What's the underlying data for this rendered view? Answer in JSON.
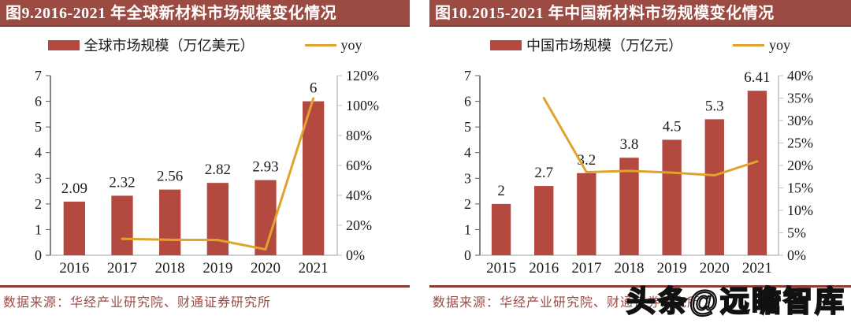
{
  "watermark": "头条@远瞻智库",
  "colors": {
    "bar": "#B4493F",
    "line": "#DFA32E",
    "title_bg": "#9C4B43",
    "title_text": "#FFFFFF",
    "separator": "#8E3B33",
    "source_text": "#9C4B43",
    "axis_dark": "#595959",
    "axis_light": "#BFBFBF",
    "tick_text": "#1A1A1A"
  },
  "chart_data": [
    {
      "type": "bar",
      "panel_title": "图9.2016-2021 年全球新材料市场规模变化情况",
      "legend_bar": "全球市场规模（万亿美元）",
      "legend_line": "yoy",
      "legend_position": "top",
      "grid": false,
      "categories": [
        "2016",
        "2017",
        "2018",
        "2019",
        "2020",
        "2021"
      ],
      "series": [
        {
          "name": "全球市场规模（万亿美元）",
          "type": "bar",
          "axis": "left",
          "values": [
            2.09,
            2.32,
            2.56,
            2.82,
            2.93,
            6
          ],
          "labels": [
            "2.09",
            "2.32",
            "2.56",
            "2.82",
            "2.93",
            "6"
          ]
        },
        {
          "name": "yoy",
          "type": "line",
          "axis": "right",
          "values": [
            null,
            11,
            10.3,
            10.2,
            3.9,
            104.8
          ]
        }
      ],
      "y_left": {
        "min": 0,
        "max": 7,
        "step": 1,
        "suffix": ""
      },
      "y_right": {
        "min": 0,
        "max": 120,
        "step": 20,
        "suffix": "%"
      },
      "source": "数据来源：华经产业研究院、财通证券研究所"
    },
    {
      "type": "bar",
      "panel_title": "图10.2015-2021 年中国新材料市场规模变化情况",
      "legend_bar": "中国市场规模（万亿元）",
      "legend_line": "yoy",
      "legend_position": "top",
      "grid": false,
      "categories": [
        "2015",
        "2016",
        "2017",
        "2018",
        "2019",
        "2020",
        "2021"
      ],
      "series": [
        {
          "name": "中国市场规模（万亿元）",
          "type": "bar",
          "axis": "left",
          "values": [
            2,
            2.7,
            3.2,
            3.8,
            4.5,
            5.3,
            6.41
          ],
          "labels": [
            "2",
            "2.7",
            "3.2",
            "3.8",
            "4.5",
            "5.3",
            "6.41"
          ]
        },
        {
          "name": "yoy",
          "type": "line",
          "axis": "right",
          "values": [
            null,
            35,
            18.5,
            18.8,
            18.4,
            17.8,
            20.9
          ]
        }
      ],
      "y_left": {
        "min": 0,
        "max": 7,
        "step": 1,
        "suffix": ""
      },
      "y_right": {
        "min": 0,
        "max": 40,
        "step": 5,
        "suffix": "%"
      },
      "source": "数据来源：华经产业研究院、财通证券研究所"
    }
  ]
}
